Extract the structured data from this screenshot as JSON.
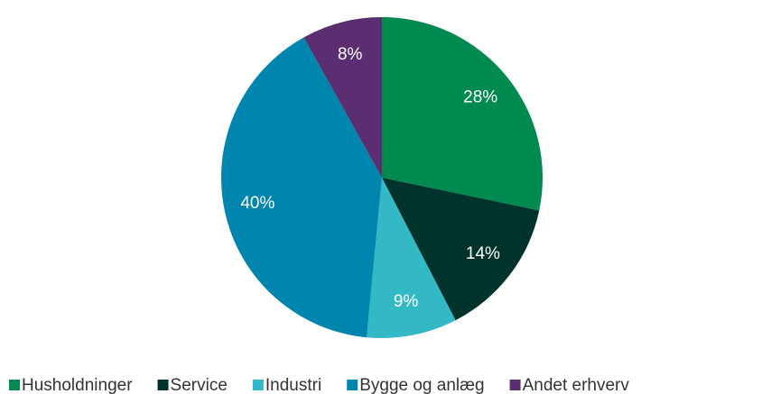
{
  "chart_data": {
    "type": "pie",
    "categories": [
      "Husholdninger",
      "Service",
      "Industri",
      "Bygge og anlæg",
      "Andet erhverv"
    ],
    "values": [
      28,
      14,
      9,
      40,
      8
    ],
    "value_labels": [
      "28%",
      "14%",
      "9%",
      "40%",
      "8%"
    ],
    "colors": [
      "#008a4f",
      "#00332b",
      "#33b9c5",
      "#0085ae",
      "#5a2e70"
    ],
    "legend": "bottom"
  }
}
